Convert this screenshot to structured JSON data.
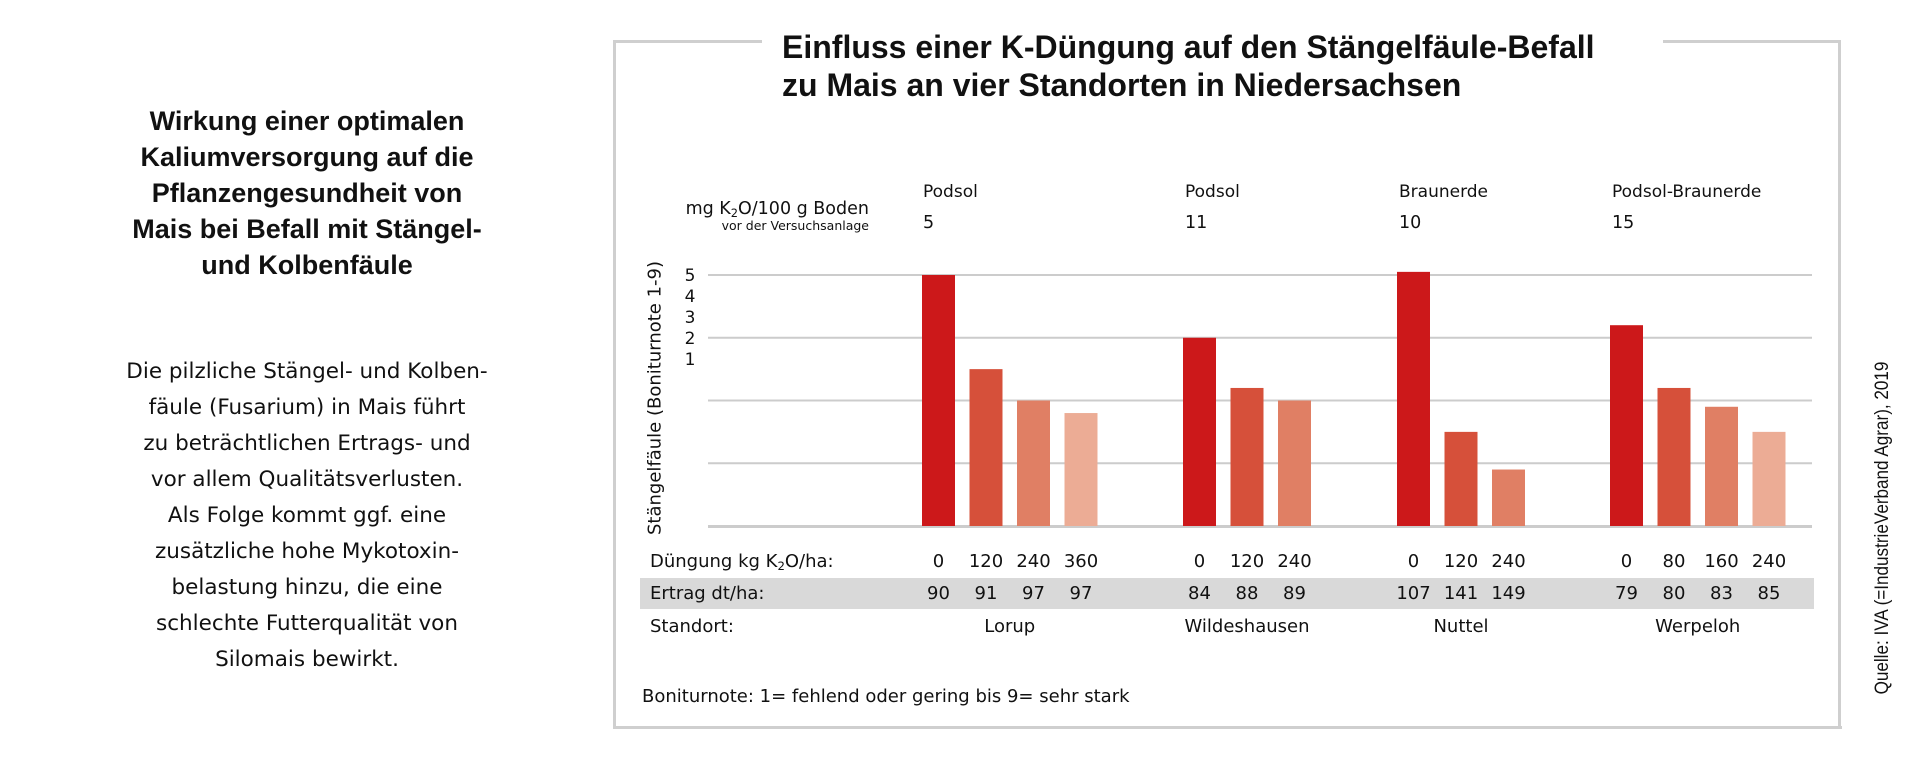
{
  "left_panel": {
    "title_lines": [
      "Wirkung einer optimalen",
      "Kaliumversorgung auf die",
      "Pflanzengesundheit von",
      "Mais bei Befall mit Stängel-",
      "und Kolbenfäule"
    ],
    "body_lines": [
      "Die pilzliche Stängel- und Kolben-",
      "fäule (Fusarium) in Mais führt",
      "zu beträchtlichen Ertrags- und",
      "vor allem Qualitätsverlusten.",
      "Als Folge kommt ggf. eine",
      "zusätzliche hohe Mykotoxin-",
      "belastung hinzu, die eine",
      "schlechte Futterqualität von",
      "Silomais bewirkt."
    ]
  },
  "source": "Quelle: IVA (=IndustrieVerband Agrar), 2019",
  "footnote": "Boniturnote: 1= fehlend oder gering bis 9= sehr stark",
  "header": {
    "unit_main_prefix": "mg K",
    "unit_main_sub": "2",
    "unit_main_suffix": "O/100 g Boden",
    "unit_sub": "vor der Versuchsanlage"
  },
  "table": {
    "duengung_label_prefix": "Düngung kg K",
    "duengung_label_sub": "2",
    "duengung_label_suffix": "O/ha:",
    "ertrag_label": "Ertrag dt/ha:",
    "standort_label": "Standort:"
  },
  "colors": {
    "bar_shades": [
      "#CC181A",
      "#D6503A",
      "#E07F64",
      "#ECAC95"
    ],
    "gridline": "#cccccc",
    "band": "#d9d9d9",
    "frame": "#cfcfcf"
  },
  "chart_data": {
    "type": "bar",
    "title_lines": [
      "Einfluss einer K-Düngung auf den Stängelfäule-Befall",
      "zu Mais an vier Standorten in Niedersachsen"
    ],
    "ylabel": "Stängelfäule (Boniturnote 1-9)",
    "yticks": [
      "5",
      "4",
      "3",
      "2",
      "1"
    ],
    "ylim": [
      1,
      5
    ],
    "grid": true,
    "groups": [
      {
        "site": "Lorup",
        "soil": "Podsol",
        "k2o_soil": "5",
        "fertilization": [
          "0",
          "120",
          "240",
          "360"
        ],
        "yield": [
          "90",
          "91",
          "97",
          "97"
        ],
        "values": [
          5.0,
          3.5,
          3.0,
          2.8
        ]
      },
      {
        "site": "Wildeshausen",
        "soil": "Podsol",
        "k2o_soil": "11",
        "fertilization": [
          "0",
          "120",
          "240"
        ],
        "yield": [
          "84",
          "88",
          "89"
        ],
        "values": [
          4.0,
          3.2,
          3.0
        ]
      },
      {
        "site": "Nuttel",
        "soil": "Braunerde",
        "k2o_soil": "10",
        "fertilization": [
          "0",
          "120",
          "240"
        ],
        "yield": [
          "107",
          "141",
          "149"
        ],
        "values": [
          5.05,
          2.5,
          1.9
        ]
      },
      {
        "site": "Werpeloh",
        "soil": "Podsol-Braunerde",
        "k2o_soil": "15",
        "fertilization": [
          "0",
          "80",
          "160",
          "240"
        ],
        "yield": [
          "79",
          "80",
          "83",
          "85"
        ],
        "values": [
          4.2,
          3.2,
          2.9,
          2.5
        ]
      }
    ]
  }
}
